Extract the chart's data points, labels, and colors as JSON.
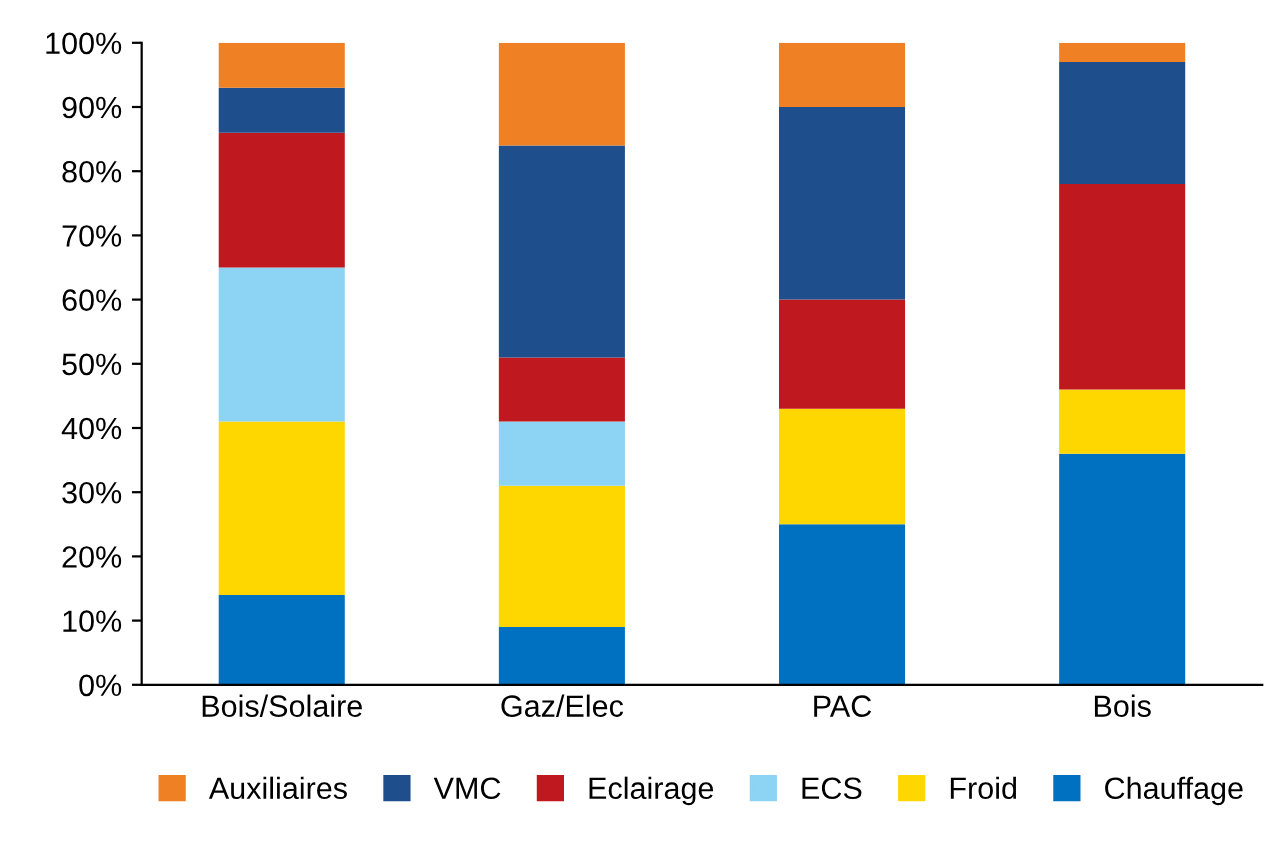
{
  "chart_data": {
    "type": "bar",
    "stacked": true,
    "categories": [
      "Bois/Solaire",
      "Gaz/Elec",
      "PAC",
      "Bois"
    ],
    "series": [
      {
        "name": "Chauffage",
        "color": "#0070c0",
        "values": [
          14,
          9,
          25,
          36
        ]
      },
      {
        "name": "Froid",
        "color": "#ffd700",
        "values": [
          27,
          22,
          18,
          10
        ]
      },
      {
        "name": "ECS",
        "color": "#8dd3f3",
        "values": [
          24,
          10,
          0,
          0
        ]
      },
      {
        "name": "Eclairage",
        "color": "#c0181f",
        "values": [
          21,
          10,
          17,
          32
        ]
      },
      {
        "name": "VMC",
        "color": "#1f4e8c",
        "values": [
          7,
          33,
          30,
          19
        ]
      },
      {
        "name": "Auxiliaires",
        "color": "#f08024",
        "values": [
          7,
          16,
          10,
          3
        ]
      }
    ],
    "ylim": [
      0,
      100
    ],
    "yticks": [
      {
        "value": 0,
        "label": "0%"
      },
      {
        "value": 10,
        "label": "10%"
      },
      {
        "value": 20,
        "label": "20%"
      },
      {
        "value": 30,
        "label": "30%"
      },
      {
        "value": 40,
        "label": "40%"
      },
      {
        "value": 50,
        "label": "50%"
      },
      {
        "value": 60,
        "label": "60%"
      },
      {
        "value": 70,
        "label": "70%"
      },
      {
        "value": 80,
        "label": "80%"
      },
      {
        "value": 90,
        "label": "90%"
      },
      {
        "value": 100,
        "label": "100%"
      }
    ],
    "grid": false,
    "legend": "bottom"
  }
}
